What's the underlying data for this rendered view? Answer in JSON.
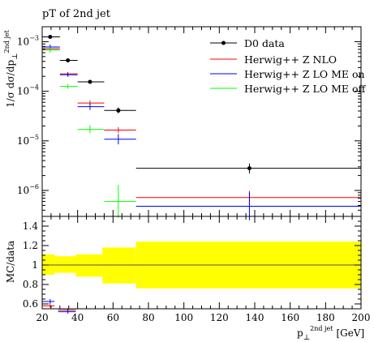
{
  "chart_data": [
    {
      "type": "scatter",
      "title": "pT of 2nd jet",
      "ylabel": "1/σ dσ/dp",
      "ylabel_sub": "⊥",
      "ylabel_sup": "2nd jet",
      "yscale": "log",
      "ylim": [
        3e-07,
        0.002
      ],
      "xlim": [
        20,
        200
      ],
      "ytick_labels": [
        {
          "base": "10",
          "exp": "−3",
          "value": 0.001
        },
        {
          "base": "10",
          "exp": "−4",
          "value": 0.0001
        },
        {
          "base": "10",
          "exp": "−5",
          "value": 1e-05
        },
        {
          "base": "10",
          "exp": "−6",
          "value": 1e-06
        }
      ],
      "legend_position": "top-right",
      "grid": false,
      "series": [
        {
          "name": "D0 data",
          "color": "#000000",
          "marker": "dot",
          "points": [
            {
              "xlo": 20,
              "xhi": 30,
              "x": 24.5,
              "y": 0.00125,
              "ylo": 0.00115,
              "yhi": 0.00135
            },
            {
              "xlo": 30,
              "xhi": 40,
              "x": 34.5,
              "y": 0.00042,
              "ylo": 0.00039,
              "yhi": 0.00045
            },
            {
              "xlo": 40,
              "xhi": 55,
              "x": 47,
              "y": 0.000155,
              "ylo": 0.000145,
              "yhi": 0.000165
            },
            {
              "xlo": 55,
              "xhi": 73,
              "x": 63,
              "y": 4.1e-05,
              "ylo": 3.6e-05,
              "yhi": 4.7e-05
            },
            {
              "xlo": 73,
              "xhi": 200,
              "x": 137,
              "y": 2.8e-06,
              "ylo": 2.2e-06,
              "yhi": 3.5e-06
            }
          ]
        },
        {
          "name": "Herwig++ Z NLO",
          "color": "#ff0000",
          "marker": "none",
          "points": [
            {
              "xlo": 20,
              "xhi": 30,
              "x": 24.5,
              "y": 0.00072,
              "ylo": 0.00065,
              "yhi": 0.0008
            },
            {
              "xlo": 30,
              "xhi": 40,
              "x": 34.5,
              "y": 0.000225,
              "ylo": 0.000205,
              "yhi": 0.000245
            },
            {
              "xlo": 40,
              "xhi": 55,
              "x": 47,
              "y": 5.8e-05,
              "ylo": 5.2e-05,
              "yhi": 6.5e-05
            },
            {
              "xlo": 55,
              "xhi": 73,
              "x": 63,
              "y": 1.65e-05,
              "ylo": 1.45e-05,
              "yhi": 1.88e-05
            },
            {
              "xlo": 73,
              "xhi": 200,
              "x": 137,
              "y": 7.2e-07,
              "ylo": 5.2e-07,
              "yhi": 9.8e-07
            }
          ]
        },
        {
          "name": "Herwig++ Z LO ME on",
          "color": "#0000ff",
          "marker": "none",
          "points": [
            {
              "xlo": 20,
              "xhi": 30,
              "x": 24.5,
              "y": 0.00078,
              "ylo": 0.0007,
              "yhi": 0.00087
            },
            {
              "xlo": 30,
              "xhi": 40,
              "x": 34.5,
              "y": 0.000215,
              "ylo": 0.000195,
              "yhi": 0.000237
            },
            {
              "xlo": 40,
              "xhi": 55,
              "x": 47,
              "y": 4.9e-05,
              "ylo": 4.2e-05,
              "yhi": 5.7e-05
            },
            {
              "xlo": 55,
              "xhi": 73,
              "x": 63,
              "y": 1.08e-05,
              "ylo": 8.5e-06,
              "yhi": 1.37e-05
            },
            {
              "xlo": 73,
              "xhi": 200,
              "x": 137,
              "y": 4.8e-07,
              "ylo": 2.5e-07,
              "yhi": 9.2e-07
            }
          ]
        },
        {
          "name": "Herwig++ Z LO ME off",
          "color": "#00ff00",
          "marker": "none",
          "points": [
            {
              "xlo": 20,
              "xhi": 30,
              "x": 24.5,
              "y": 0.00068,
              "ylo": 0.0006,
              "yhi": 0.00077
            },
            {
              "xlo": 30,
              "xhi": 40,
              "x": 34.5,
              "y": 0.000125,
              "ylo": 0.000112,
              "yhi": 0.00014
            },
            {
              "xlo": 40,
              "xhi": 55,
              "x": 47,
              "y": 1.7e-05,
              "ylo": 1.42e-05,
              "yhi": 2.05e-05
            },
            {
              "xlo": 55,
              "xhi": 73,
              "x": 63,
              "y": 6e-07,
              "ylo": 2.8e-07,
              "yhi": 1.3e-06
            }
          ]
        }
      ]
    },
    {
      "type": "scatter",
      "ylabel": "MC/data",
      "xlabel": "p",
      "xlabel_sub": "⊥",
      "xlabel_sup": "2nd jet",
      "xlabel_unit": "[GeV]",
      "xlim": [
        20,
        200
      ],
      "ylim": [
        0.55,
        1.5
      ],
      "xticks": [
        20,
        40,
        60,
        80,
        100,
        120,
        140,
        160,
        180,
        200
      ],
      "yticks": [
        0.6,
        0.8,
        1.0,
        1.2,
        1.4
      ],
      "ytick_labels": [
        "0.6",
        "0.8",
        "1",
        "1.2",
        "1.4"
      ],
      "reference_line": 1.0,
      "uncertainty_band_color": "#ffff00",
      "uncertainty_band": [
        {
          "xlo": 20,
          "xhi": 27,
          "lo": 0.9,
          "hi": 1.11
        },
        {
          "xlo": 27,
          "xhi": 39,
          "lo": 0.92,
          "hi": 1.09
        },
        {
          "xlo": 39,
          "xhi": 54,
          "lo": 0.88,
          "hi": 1.11
        },
        {
          "xlo": 54,
          "xhi": 73,
          "lo": 0.81,
          "hi": 1.18
        },
        {
          "xlo": 73,
          "xhi": 200,
          "lo": 0.76,
          "hi": 1.24
        }
      ],
      "series": [
        {
          "name": "Herwig++ Z NLO",
          "color": "#ff0000",
          "points": [
            {
              "xlo": 20,
              "xhi": 27,
              "x": 24.5,
              "y": 0.58,
              "ylo": 0.56,
              "yhi": 0.6
            },
            {
              "xlo": 29,
              "xhi": 39,
              "x": 34.5,
              "y": 0.535,
              "ylo": 0.515,
              "yhi": 0.555
            }
          ]
        },
        {
          "name": "Herwig++ Z LO ME on",
          "color": "#0000ff",
          "points": [
            {
              "xlo": 20,
              "xhi": 27,
              "x": 24.5,
              "y": 0.625,
              "ylo": 0.6,
              "yhi": 0.65
            },
            {
              "xlo": 29,
              "xhi": 39,
              "x": 34.5,
              "y": 0.52,
              "ylo": 0.5,
              "yhi": 0.545
            }
          ]
        }
      ]
    }
  ]
}
